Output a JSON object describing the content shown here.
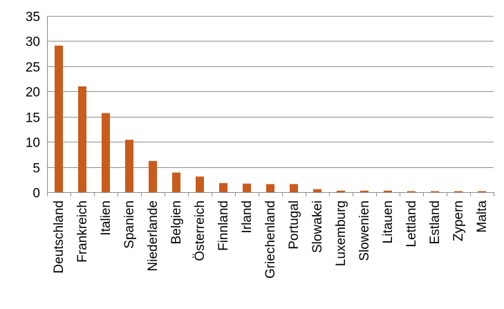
{
  "chart_data": {
    "type": "bar",
    "categories": [
      "Deutschland",
      "Frankreich",
      "Italien",
      "Spanien",
      "Niederlande",
      "Belgien",
      "Österreich",
      "Finnland",
      "Irland",
      "Griechenland",
      "Portugal",
      "Slowakei",
      "Luxemburg",
      "Slowenien",
      "Litauen",
      "Lettland",
      "Estland",
      "Zypern",
      "Malta"
    ],
    "values": [
      29.1,
      21.0,
      15.7,
      10.4,
      6.2,
      3.9,
      3.1,
      1.8,
      1.7,
      1.6,
      1.6,
      0.6,
      0.3,
      0.3,
      0.3,
      0.2,
      0.2,
      0.2,
      0.2
    ],
    "ylim": [
      0,
      35
    ],
    "yticks": [
      0,
      5,
      10,
      15,
      20,
      25,
      30,
      35
    ],
    "grid": true,
    "colors": {
      "bar": "#C95B1C",
      "grid": "#8C8C8C",
      "axis": "#8C8C8C"
    }
  }
}
